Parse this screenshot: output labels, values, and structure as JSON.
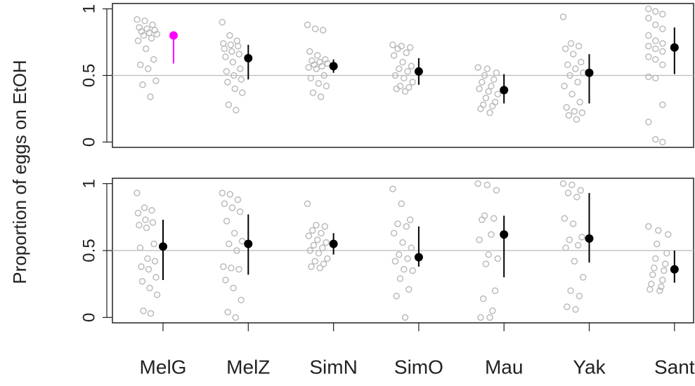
{
  "chart_data": [
    {
      "type": "strip",
      "ylabel": "Proportion of eggs on EtOH",
      "ylim": [
        -0.04,
        1.04
      ],
      "yticks": [
        0,
        0.5,
        1
      ],
      "hline": 0.5,
      "point_color": "#bbbbbb",
      "groups": [
        {
          "points": [
            0.92,
            0.91,
            0.88,
            0.86,
            0.85,
            0.84,
            0.83,
            0.82,
            0.81,
            0.8,
            0.78,
            0.76,
            0.7,
            0.62,
            0.58,
            0.55,
            0.46,
            0.43,
            0.34
          ],
          "mean": 0.8,
          "ci": [
            0.59,
            0.83
          ],
          "color": "#ff00ff"
        },
        {
          "points": [
            0.9,
            0.8,
            0.76,
            0.74,
            0.73,
            0.72,
            0.7,
            0.68,
            0.66,
            0.64,
            0.6,
            0.55,
            0.53,
            0.5,
            0.47,
            0.45,
            0.4,
            0.37,
            0.28,
            0.24
          ],
          "mean": 0.63,
          "ci": [
            0.47,
            0.73
          ],
          "color": "#000000"
        },
        {
          "points": [
            0.88,
            0.85,
            0.84,
            0.68,
            0.65,
            0.62,
            0.61,
            0.6,
            0.59,
            0.58,
            0.57,
            0.56,
            0.55,
            0.5,
            0.48,
            0.44,
            0.42,
            0.37,
            0.34
          ],
          "mean": 0.57,
          "ci": [
            0.52,
            0.62
          ],
          "color": "#000000"
        },
        {
          "points": [
            0.73,
            0.72,
            0.71,
            0.7,
            0.67,
            0.65,
            0.6,
            0.57,
            0.55,
            0.53,
            0.5,
            0.48,
            0.45,
            0.42,
            0.41,
            0.4,
            0.38
          ],
          "mean": 0.53,
          "ci": [
            0.43,
            0.63
          ],
          "color": "#000000"
        },
        {
          "points": [
            0.56,
            0.55,
            0.52,
            0.5,
            0.47,
            0.45,
            0.42,
            0.4,
            0.38,
            0.36,
            0.33,
            0.3,
            0.28,
            0.27,
            0.25,
            0.22
          ],
          "mean": 0.39,
          "ci": [
            0.29,
            0.51
          ],
          "color": "#000000"
        },
        {
          "points": [
            0.94,
            0.74,
            0.72,
            0.7,
            0.66,
            0.6,
            0.58,
            0.55,
            0.52,
            0.5,
            0.45,
            0.42,
            0.36,
            0.3,
            0.26,
            0.23,
            0.22,
            0.2,
            0.17
          ],
          "mean": 0.52,
          "ci": [
            0.29,
            0.66
          ],
          "color": "#000000"
        },
        {
          "points": [
            1,
            0.98,
            0.96,
            0.93,
            0.88,
            0.85,
            0.8,
            0.76,
            0.74,
            0.72,
            0.7,
            0.68,
            0.64,
            0.62,
            0.58,
            0.49,
            0.48,
            0.28,
            0.15,
            0.02,
            0
          ],
          "mean": 0.71,
          "ci": [
            0.51,
            0.86
          ],
          "color": "#000000"
        }
      ]
    },
    {
      "type": "strip",
      "ylim": [
        -0.04,
        1.04
      ],
      "yticks": [
        0,
        0.5,
        1
      ],
      "hline": 0.5,
      "point_color": "#bbbbbb",
      "categories": [
        "MelG",
        "MelZ",
        "SimN",
        "SimO",
        "Mau",
        "Yak",
        "Sant"
      ],
      "groups": [
        {
          "points": [
            0.93,
            0.82,
            0.8,
            0.78,
            0.73,
            0.71,
            0.69,
            0.67,
            0.55,
            0.52,
            0.44,
            0.42,
            0.38,
            0.36,
            0.3,
            0.27,
            0.22,
            0.17,
            0.05,
            0.03
          ],
          "mean": 0.53,
          "ci": [
            0.28,
            0.73
          ],
          "color": "#000000"
        },
        {
          "points": [
            0.93,
            0.92,
            0.88,
            0.85,
            0.82,
            0.79,
            0.72,
            0.63,
            0.57,
            0.55,
            0.5,
            0.38,
            0.37,
            0.36,
            0.28,
            0.22,
            0.13,
            0.04,
            0
          ],
          "mean": 0.55,
          "ci": [
            0.32,
            0.77
          ],
          "color": "#000000"
        },
        {
          "points": [
            0.85,
            0.69,
            0.68,
            0.65,
            0.63,
            0.61,
            0.58,
            0.56,
            0.54,
            0.52,
            0.5,
            0.48,
            0.44,
            0.42,
            0.4,
            0.38,
            0.37
          ],
          "mean": 0.55,
          "ci": [
            0.47,
            0.63
          ],
          "color": "#000000"
        },
        {
          "points": [
            0.96,
            0.85,
            0.73,
            0.7,
            0.68,
            0.63,
            0.56,
            0.52,
            0.47,
            0.44,
            0.42,
            0.36,
            0.35,
            0.29,
            0.21,
            0.16,
            0
          ],
          "mean": 0.45,
          "ci": [
            0.38,
            0.68
          ],
          "color": "#000000"
        },
        {
          "points": [
            1,
            0.99,
            0.95,
            0.76,
            0.74,
            0.73,
            0.62,
            0.58,
            0.47,
            0.44,
            0.4,
            0.2,
            0.14,
            0.05,
            0,
            0
          ],
          "mean": 0.62,
          "ci": [
            0.3,
            0.76
          ],
          "color": "#000000"
        },
        {
          "points": [
            1,
            0.99,
            0.95,
            0.93,
            0.9,
            0.74,
            0.7,
            0.6,
            0.58,
            0.54,
            0.52,
            0.42,
            0.3,
            0.2,
            0.16,
            0.08,
            0.06
          ],
          "mean": 0.59,
          "ci": [
            0.41,
            0.93
          ],
          "color": "#000000"
        },
        {
          "points": [
            0.68,
            0.65,
            0.62,
            0.55,
            0.48,
            0.44,
            0.4,
            0.37,
            0.35,
            0.32,
            0.28,
            0.25,
            0.23,
            0.21,
            0.2
          ],
          "mean": 0.36,
          "ci": [
            0.26,
            0.5
          ],
          "color": "#000000"
        }
      ]
    }
  ]
}
